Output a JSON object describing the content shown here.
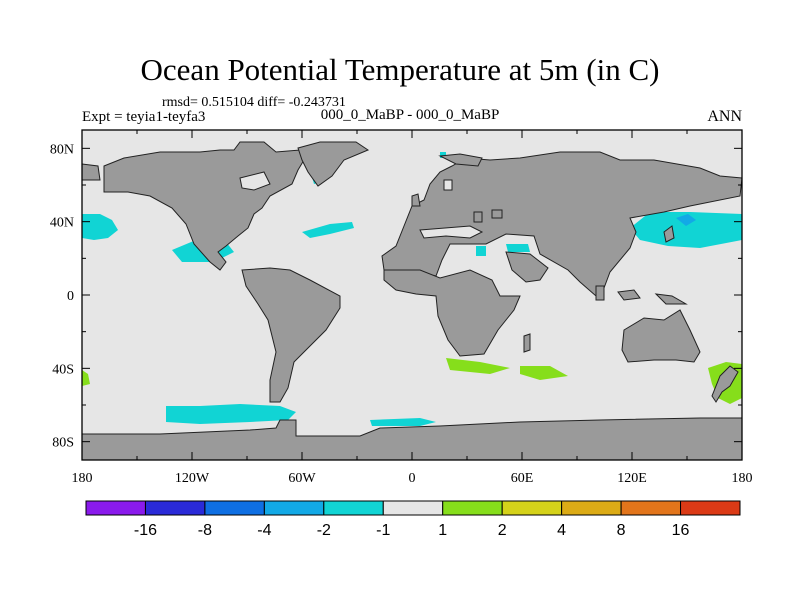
{
  "title": "Ocean Potential Temperature at 5m (in C)",
  "stats": "rmsd= 0.515104  diff= -0.243731",
  "expt": "Expt = teyia1-teyfa3",
  "subtitle": "000_0_MaBP - 000_0_MaBP",
  "season": "ANN",
  "chart_data": {
    "type": "heatmap",
    "projection": "cylindrical-equidistant",
    "lon_range": [
      -180,
      180
    ],
    "lat_range": [
      -90,
      90
    ],
    "x_ticks": [
      "180",
      "120W",
      "60W",
      "0",
      "60E",
      "120E",
      "180"
    ],
    "y_ticks": [
      "80N",
      "40N",
      "0",
      "40S",
      "80S"
    ],
    "colorbar": {
      "colors": [
        "#8a1aec",
        "#2a2ad8",
        "#0f6fe3",
        "#12a9e6",
        "#11d4d4",
        "#e6e6e6",
        "#86de1b",
        "#d5d21a",
        "#dcab16",
        "#e2751b",
        "#db3a16"
      ],
      "labels": [
        "-16",
        "-8",
        "-4",
        "-2",
        "-1",
        "1",
        "2",
        "4",
        "8",
        "16"
      ]
    },
    "colors": {
      "land": "#9a9a9a",
      "ocean_neutral": "#e6e6e6",
      "cool": "#11d4d4",
      "cooler": "#12a9e6",
      "warm": "#86de1b"
    }
  }
}
